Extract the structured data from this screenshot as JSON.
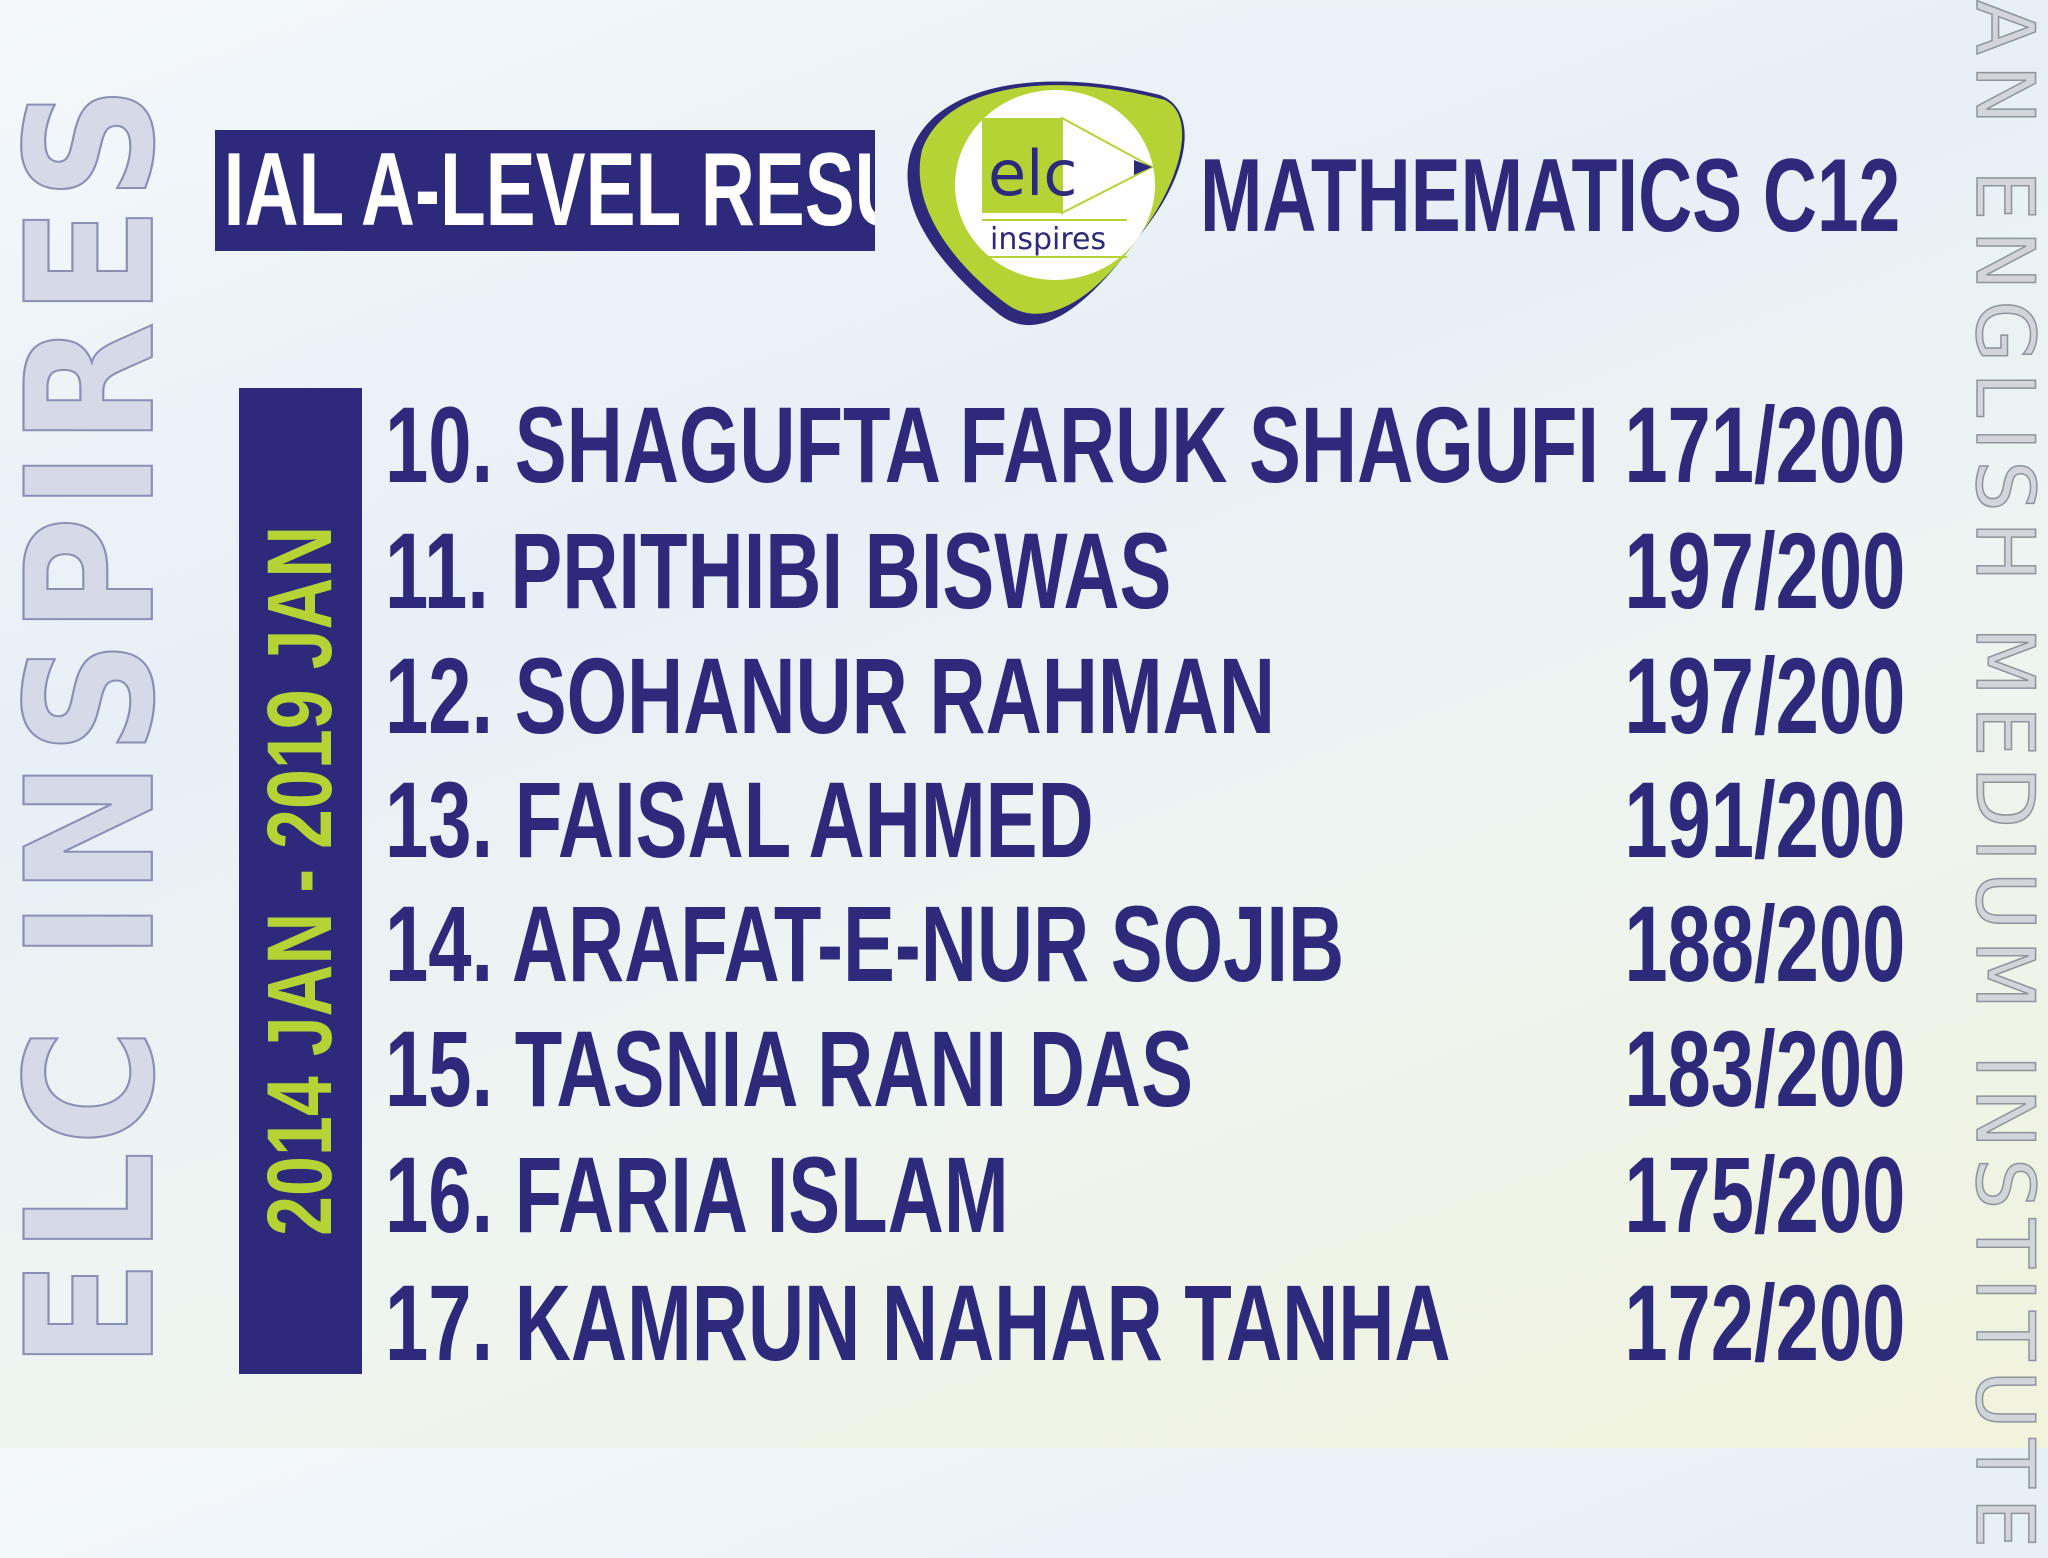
{
  "watermark_left": "ELC INSPIRES",
  "watermark_right": "AN ENGLISH MEDIUM INSTITUTE",
  "header": {
    "title": "IAL A-LEVEL RESULTS",
    "subject": "MATHEMATICS C12"
  },
  "logo": {
    "text": "elc",
    "tagline": "inspires"
  },
  "date_range": "2014 JAN - 2019 JAN",
  "results": [
    {
      "name": "10. SHAGUFTA FARUK SHAGUFI",
      "score": "171/200"
    },
    {
      "name": "11. PRITHIBI BISWAS",
      "score": "197/200"
    },
    {
      "name": "12. SOHANUR RAHMAN",
      "score": "197/200"
    },
    {
      "name": "13. FAISAL AHMED",
      "score": "191/200"
    },
    {
      "name": "14. ARAFAT-E-NUR SOJIB",
      "score": "188/200"
    },
    {
      "name": "15. TASNIA RANI DAS",
      "score": "183/200"
    },
    {
      "name": "16. FARIA ISLAM",
      "score": "175/200"
    },
    {
      "name": "17. KAMRUN NAHAR TANHA",
      "score": "172/200"
    }
  ],
  "colors": {
    "navy": "#2d2a7b",
    "lime": "#b5d334"
  }
}
